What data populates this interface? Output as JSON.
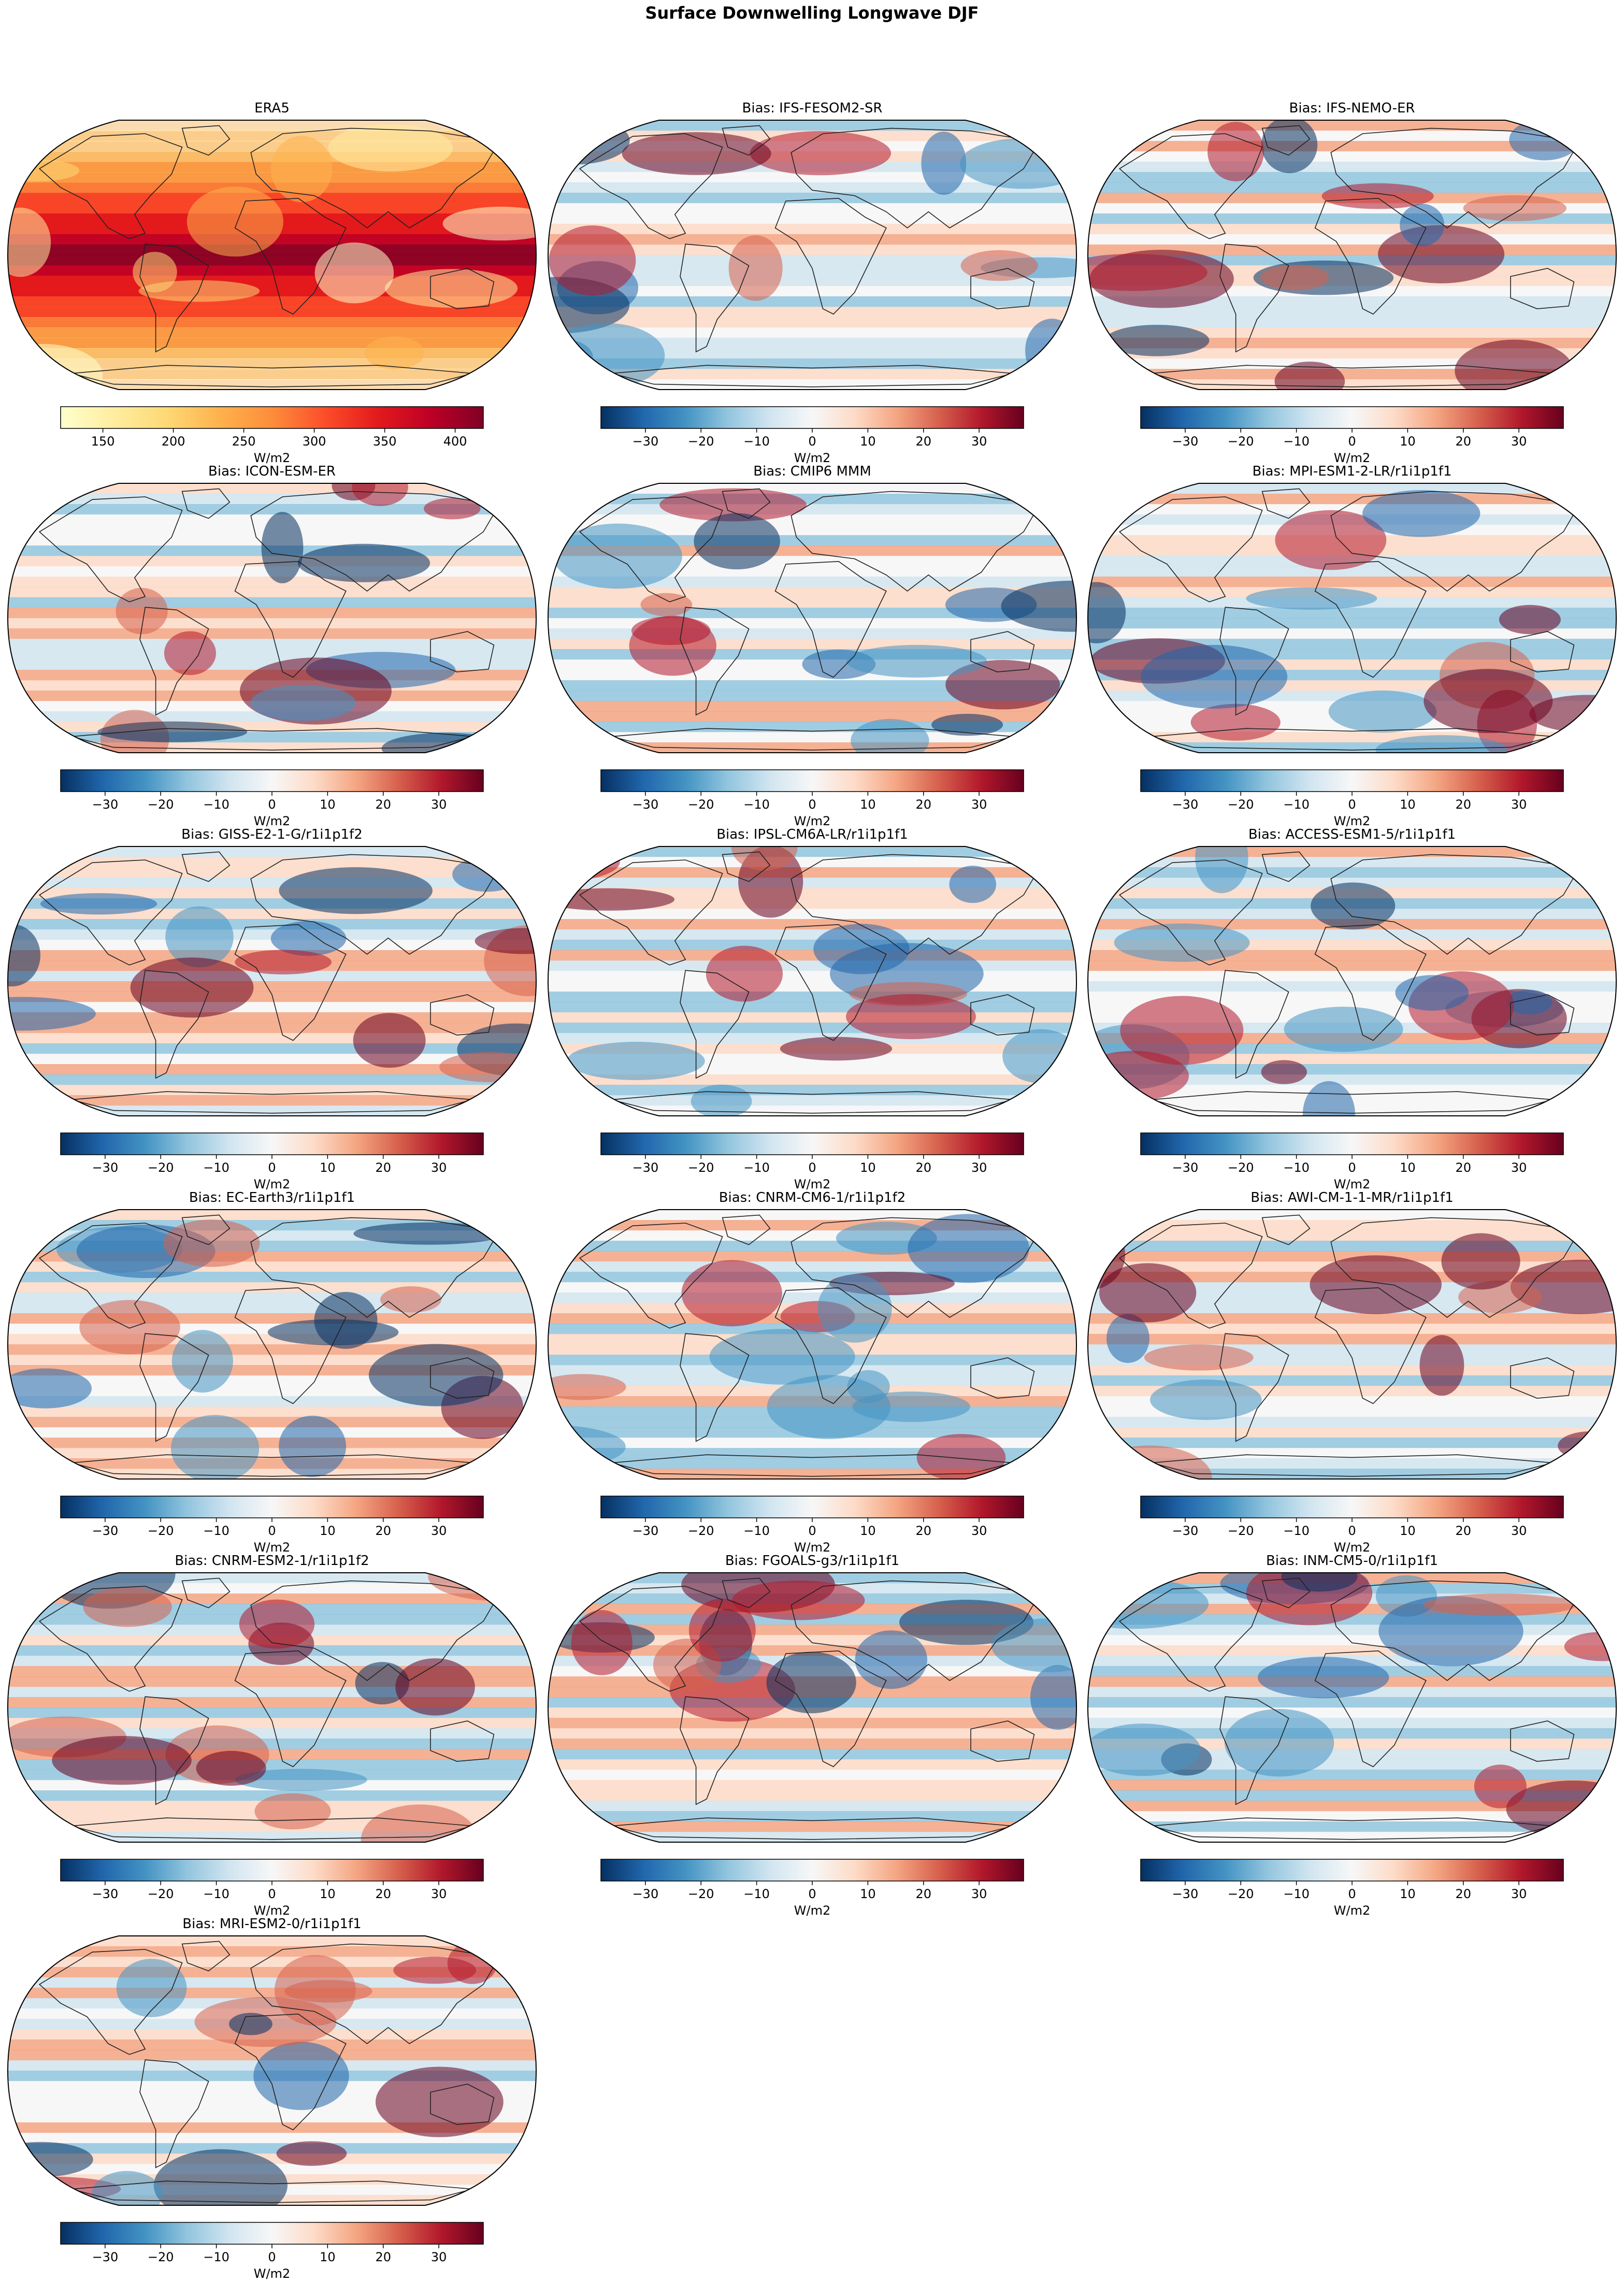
{
  "figure": {
    "title": "Surface Downwelling Longwave DJF"
  },
  "chart_data": [
    {
      "type": "heatmap",
      "title": "ERA5",
      "colormap": "YlOrRd",
      "colorbar": {
        "label": "W/m2",
        "range": [
          120,
          420
        ],
        "ticks": [
          150,
          200,
          250,
          300,
          350,
          400
        ]
      }
    },
    {
      "type": "heatmap",
      "title": "Bias: IFS-FESOM2-SR",
      "colormap": "RdBu_r",
      "colorbar": {
        "label": "W/m2",
        "range": [
          -38,
          38
        ],
        "ticks": [
          -30,
          -20,
          -10,
          0,
          10,
          20,
          30
        ]
      }
    },
    {
      "type": "heatmap",
      "title": "Bias: IFS-NEMO-ER",
      "colormap": "RdBu_r",
      "colorbar": {
        "label": "W/m2",
        "range": [
          -38,
          38
        ],
        "ticks": [
          -30,
          -20,
          -10,
          0,
          10,
          20,
          30
        ]
      }
    },
    {
      "type": "heatmap",
      "title": "Bias: ICON-ESM-ER",
      "colormap": "RdBu_r",
      "colorbar": {
        "label": "W/m2",
        "range": [
          -38,
          38
        ],
        "ticks": [
          -30,
          -20,
          -10,
          0,
          10,
          20,
          30
        ]
      }
    },
    {
      "type": "heatmap",
      "title": "Bias: CMIP6 MMM",
      "colormap": "RdBu_r",
      "colorbar": {
        "label": "W/m2",
        "range": [
          -38,
          38
        ],
        "ticks": [
          -30,
          -20,
          -10,
          0,
          10,
          20,
          30
        ]
      }
    },
    {
      "type": "heatmap",
      "title": "Bias: MPI-ESM1-2-LR/r1i1p1f1",
      "colormap": "RdBu_r",
      "colorbar": {
        "label": "W/m2",
        "range": [
          -38,
          38
        ],
        "ticks": [
          -30,
          -20,
          -10,
          0,
          10,
          20,
          30
        ]
      }
    },
    {
      "type": "heatmap",
      "title": "Bias: GISS-E2-1-G/r1i1p1f2",
      "colormap": "RdBu_r",
      "colorbar": {
        "label": "W/m2",
        "range": [
          -38,
          38
        ],
        "ticks": [
          -30,
          -20,
          -10,
          0,
          10,
          20,
          30
        ]
      }
    },
    {
      "type": "heatmap",
      "title": "Bias: IPSL-CM6A-LR/r1i1p1f1",
      "colormap": "RdBu_r",
      "colorbar": {
        "label": "W/m2",
        "range": [
          -38,
          38
        ],
        "ticks": [
          -30,
          -20,
          -10,
          0,
          10,
          20,
          30
        ]
      }
    },
    {
      "type": "heatmap",
      "title": "Bias: ACCESS-ESM1-5/r1i1p1f1",
      "colormap": "RdBu_r",
      "colorbar": {
        "label": "W/m2",
        "range": [
          -38,
          38
        ],
        "ticks": [
          -30,
          -20,
          -10,
          0,
          10,
          20,
          30
        ]
      }
    },
    {
      "type": "heatmap",
      "title": "Bias: EC-Earth3/r1i1p1f1",
      "colormap": "RdBu_r",
      "colorbar": {
        "label": "W/m2",
        "range": [
          -38,
          38
        ],
        "ticks": [
          -30,
          -20,
          -10,
          0,
          10,
          20,
          30
        ]
      }
    },
    {
      "type": "heatmap",
      "title": "Bias: CNRM-CM6-1/r1i1p1f2",
      "colormap": "RdBu_r",
      "colorbar": {
        "label": "W/m2",
        "range": [
          -38,
          38
        ],
        "ticks": [
          -30,
          -20,
          -10,
          0,
          10,
          20,
          30
        ]
      }
    },
    {
      "type": "heatmap",
      "title": "Bias: AWI-CM-1-1-MR/r1i1p1f1",
      "colormap": "RdBu_r",
      "colorbar": {
        "label": "W/m2",
        "range": [
          -38,
          38
        ],
        "ticks": [
          -30,
          -20,
          -10,
          0,
          10,
          20,
          30
        ]
      }
    },
    {
      "type": "heatmap",
      "title": "Bias: CNRM-ESM2-1/r1i1p1f2",
      "colormap": "RdBu_r",
      "colorbar": {
        "label": "W/m2",
        "range": [
          -38,
          38
        ],
        "ticks": [
          -30,
          -20,
          -10,
          0,
          10,
          20,
          30
        ]
      }
    },
    {
      "type": "heatmap",
      "title": "Bias: FGOALS-g3/r1i1p1f1",
      "colormap": "RdBu_r",
      "colorbar": {
        "label": "W/m2",
        "range": [
          -38,
          38
        ],
        "ticks": [
          -30,
          -20,
          -10,
          0,
          10,
          20,
          30
        ]
      }
    },
    {
      "type": "heatmap",
      "title": "Bias: INM-CM5-0/r1i1p1f1",
      "colormap": "RdBu_r",
      "colorbar": {
        "label": "W/m2",
        "range": [
          -38,
          38
        ],
        "ticks": [
          -30,
          -20,
          -10,
          0,
          10,
          20,
          30
        ]
      }
    },
    {
      "type": "heatmap",
      "title": "Bias: MRI-ESM2-0/r1i1p1f1",
      "colormap": "RdBu_r",
      "colorbar": {
        "label": "W/m2",
        "range": [
          -38,
          38
        ],
        "ticks": [
          -30,
          -20,
          -10,
          0,
          10,
          20,
          30
        ]
      }
    }
  ]
}
